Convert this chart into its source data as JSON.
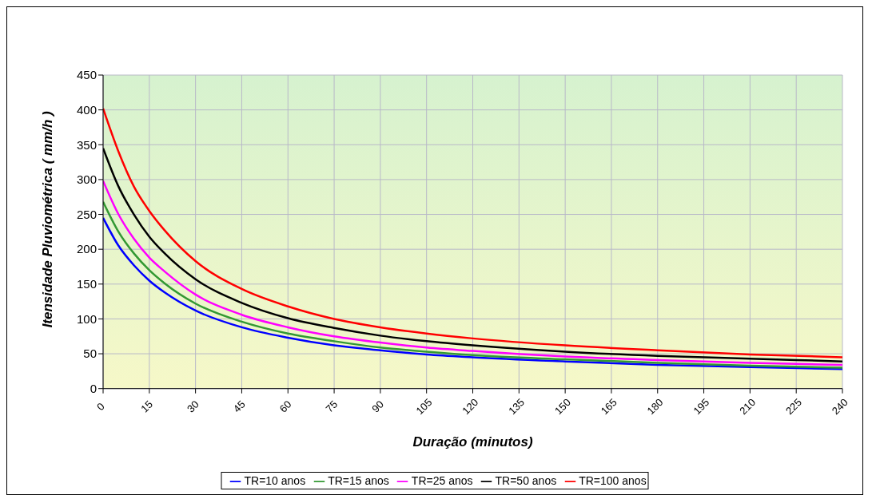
{
  "chart_data": {
    "type": "line",
    "xlabel": "Duração (minutos)",
    "ylabel": "Itensidade Pluviométrica ( mm/h )",
    "x": [
      0,
      5,
      10,
      15,
      20,
      30,
      45,
      60,
      75,
      90,
      105,
      120,
      150,
      180,
      210,
      240
    ],
    "series": [
      {
        "name": "TR=10 anos",
        "color": "#0000ff",
        "values": [
          245,
          205,
          177,
          155,
          138,
          112,
          88,
          73,
          62,
          55,
          49,
          45,
          39,
          34,
          31,
          28
        ]
      },
      {
        "name": "TR=15 anos",
        "color": "#339933",
        "values": [
          268,
          225,
          194,
          170,
          151,
          122,
          96,
          79,
          68,
          59,
          53,
          48,
          42,
          37,
          33,
          30
        ]
      },
      {
        "name": "TR=25 anos",
        "color": "#ff00ff",
        "values": [
          298,
          250,
          215,
          188,
          168,
          135,
          106,
          88,
          75,
          66,
          59,
          54,
          46,
          41,
          37,
          34
        ]
      },
      {
        "name": "TR=50 anos",
        "color": "#000000",
        "values": [
          345,
          290,
          250,
          218,
          194,
          157,
          123,
          101,
          87,
          76,
          68,
          62,
          53,
          47,
          43,
          39
        ]
      },
      {
        "name": "TR=100 anos",
        "color": "#ff0000",
        "values": [
          402,
          340,
          290,
          255,
          227,
          183,
          143,
          118,
          100,
          88,
          79,
          72,
          62,
          55,
          49,
          45
        ]
      }
    ],
    "xlim": [
      0,
      240
    ],
    "xticks": [
      0,
      15,
      30,
      45,
      60,
      75,
      90,
      105,
      120,
      135,
      150,
      165,
      180,
      195,
      210,
      225,
      240
    ],
    "ylim": [
      0,
      450
    ],
    "yticks": [
      0,
      50,
      100,
      150,
      200,
      250,
      300,
      350,
      400,
      450
    ],
    "grid": true,
    "legend": "bottom",
    "marker": "none",
    "line_style": "solid"
  }
}
